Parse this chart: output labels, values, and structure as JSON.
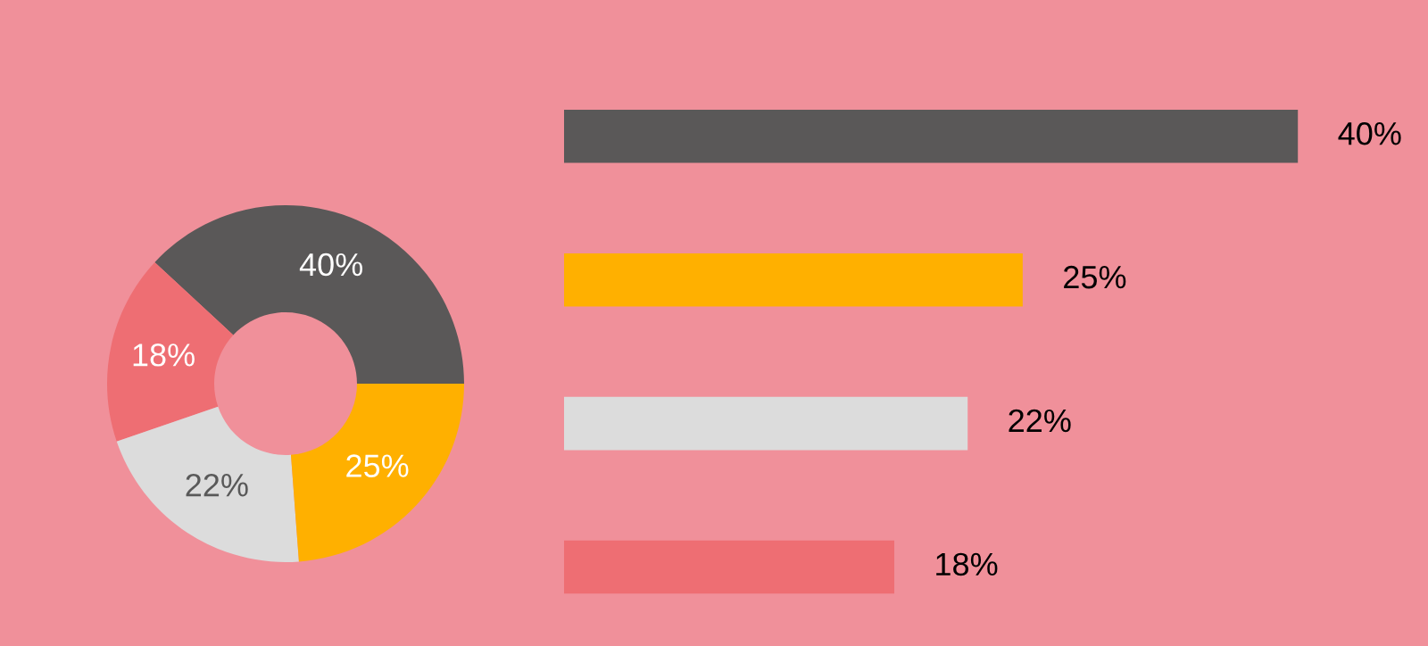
{
  "chart_data": [
    {
      "type": "donut",
      "categories": [
        null,
        null,
        null,
        null
      ],
      "values": [
        40,
        18,
        22,
        25
      ],
      "colors": [
        "#5a5858",
        "#ee6e73",
        "#dcdcdc",
        "#ffb000"
      ],
      "value_labels": [
        "40%",
        "18%",
        "22%",
        "25%"
      ]
    },
    {
      "type": "bar",
      "orientation": "horizontal",
      "categories": [
        null,
        null,
        null,
        null
      ],
      "values": [
        40,
        25,
        22,
        18
      ],
      "colors": [
        "#5a5858",
        "#ffb000",
        "#dcdcdc",
        "#ee6e73"
      ],
      "value_labels": [
        "40%",
        "25%",
        "22%",
        "18%"
      ]
    }
  ]
}
